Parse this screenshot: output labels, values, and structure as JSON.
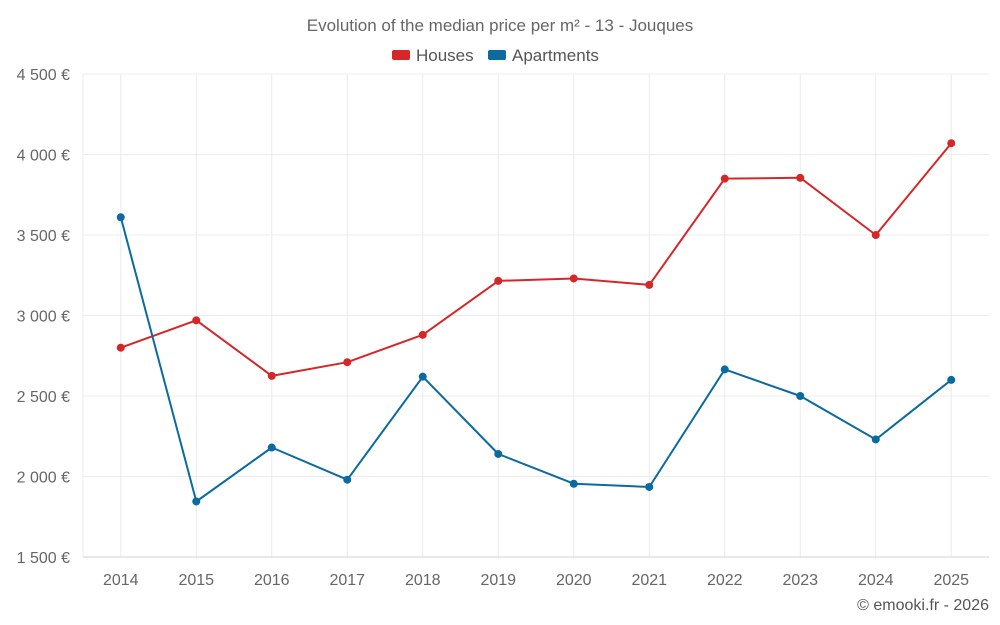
{
  "chart_data": {
    "type": "line",
    "title": "Evolution of the median price per m² - 13 - Jouques",
    "categories": [
      "2014",
      "2015",
      "2016",
      "2017",
      "2018",
      "2019",
      "2020",
      "2021",
      "2022",
      "2023",
      "2024",
      "2025"
    ],
    "ylim": [
      1500,
      4500
    ],
    "yticks": [
      1500,
      2000,
      2500,
      3000,
      3500,
      4000,
      4500
    ],
    "ytick_labels": [
      "1 500 €",
      "2 000 €",
      "2 500 €",
      "3 000 €",
      "3 500 €",
      "4 000 €",
      "4 500 €"
    ],
    "xlabel": "",
    "ylabel": "",
    "grid": true,
    "legend_position": "top-center",
    "series": [
      {
        "name": "Houses",
        "color": "#d62728",
        "values": [
          2800,
          2970,
          2625,
          2710,
          2880,
          3215,
          3230,
          3190,
          3850,
          3855,
          3500,
          4070
        ]
      },
      {
        "name": "Apartments",
        "color": "#0b6aa0",
        "values": [
          3610,
          1845,
          2180,
          1980,
          2620,
          2140,
          1955,
          1935,
          2665,
          2500,
          2230,
          2600
        ]
      }
    ]
  },
  "credit": "© emooki.fr - 2026"
}
